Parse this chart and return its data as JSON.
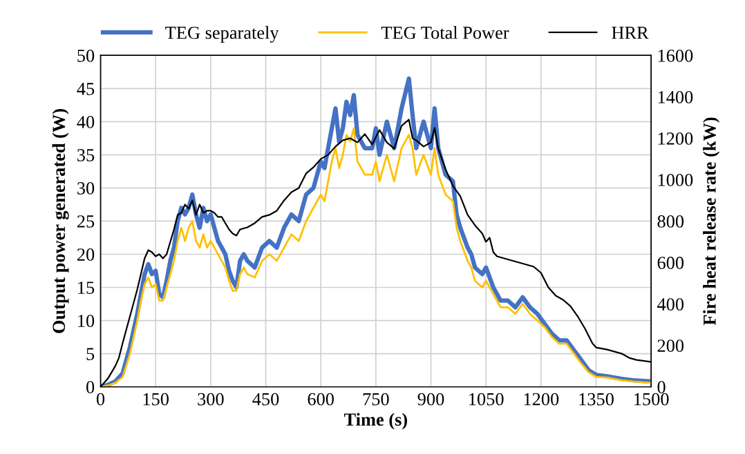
{
  "chart_data": {
    "type": "line",
    "xlabel": "Time (s)",
    "ylabel": "Output power generated (W)",
    "y2label": "Fire heat release rate (kW)",
    "xlim": [
      0,
      1500
    ],
    "xticks": [
      0,
      150,
      300,
      450,
      600,
      750,
      900,
      1050,
      1200,
      1350,
      1500
    ],
    "ylim": [
      0,
      50
    ],
    "yticks": [
      0,
      5,
      10,
      15,
      20,
      25,
      30,
      35,
      40,
      45,
      50
    ],
    "y2lim": [
      0,
      1600
    ],
    "y2ticks": [
      0,
      200,
      400,
      600,
      800,
      1000,
      1200,
      1400,
      1600
    ],
    "grid": true,
    "legend": "top",
    "marker": "none",
    "line_style": "solid",
    "series": [
      {
        "name": "TEG separately",
        "color": "#4472c4",
        "x": [
          0,
          20,
          40,
          60,
          80,
          100,
          110,
          120,
          130,
          140,
          150,
          160,
          170,
          180,
          190,
          200,
          210,
          220,
          230,
          240,
          250,
          260,
          270,
          280,
          290,
          300,
          310,
          320,
          330,
          340,
          350,
          360,
          370,
          380,
          390,
          400,
          420,
          440,
          460,
          480,
          500,
          520,
          540,
          560,
          580,
          600,
          610,
          620,
          630,
          640,
          650,
          660,
          670,
          680,
          690,
          700,
          720,
          740,
          750,
          760,
          780,
          790,
          800,
          820,
          840,
          850,
          860,
          880,
          900,
          910,
          920,
          940,
          960,
          970,
          980,
          1000,
          1010,
          1020,
          1040,
          1050,
          1070,
          1090,
          1110,
          1130,
          1150,
          1170,
          1190,
          1210,
          1230,
          1250,
          1270,
          1290,
          1310,
          1330,
          1350,
          1380,
          1420,
          1450,
          1500
        ],
        "values": [
          0,
          0.3,
          0.8,
          2,
          6,
          11,
          14,
          17,
          18.5,
          17,
          17.5,
          14,
          13.5,
          16,
          19,
          21,
          25,
          27,
          26,
          27,
          29,
          26,
          24,
          27,
          25,
          26,
          24,
          22,
          21,
          20,
          17.5,
          16,
          15,
          19,
          20,
          19,
          18,
          21,
          22,
          21,
          24,
          26,
          25,
          29,
          30,
          34,
          33,
          36,
          39,
          42,
          37,
          39,
          43,
          41,
          44,
          38,
          36,
          36,
          39,
          35,
          40,
          38,
          36,
          42,
          46.5,
          41,
          36,
          40,
          36,
          42,
          36,
          32,
          31,
          26,
          24,
          21,
          20,
          18,
          17,
          18,
          15,
          13,
          13,
          12,
          13.5,
          12,
          11,
          9.5,
          8,
          7,
          7,
          5.5,
          4,
          2.5,
          1.8,
          1.6,
          1.2,
          1,
          0.8
        ]
      },
      {
        "name": "TEG Total Power",
        "color": "#ffc000",
        "x": [
          0,
          20,
          40,
          60,
          80,
          100,
          110,
          120,
          130,
          140,
          150,
          160,
          170,
          180,
          190,
          200,
          210,
          220,
          230,
          240,
          250,
          260,
          270,
          280,
          290,
          300,
          310,
          320,
          330,
          340,
          350,
          360,
          370,
          380,
          390,
          400,
          420,
          440,
          460,
          480,
          500,
          520,
          540,
          560,
          580,
          600,
          610,
          620,
          630,
          640,
          650,
          660,
          670,
          680,
          690,
          700,
          720,
          740,
          750,
          760,
          780,
          790,
          800,
          820,
          840,
          850,
          860,
          880,
          900,
          910,
          920,
          940,
          960,
          970,
          980,
          1000,
          1010,
          1020,
          1040,
          1050,
          1070,
          1090,
          1110,
          1130,
          1150,
          1170,
          1190,
          1210,
          1230,
          1250,
          1270,
          1290,
          1310,
          1330,
          1350,
          1380,
          1420,
          1450,
          1500
        ],
        "values": [
          0,
          0.2,
          0.6,
          1.5,
          5,
          10,
          13,
          15.5,
          16.5,
          15,
          15.5,
          13,
          13,
          15,
          17,
          19,
          22,
          24,
          22,
          24,
          25,
          22,
          21,
          23,
          21,
          22,
          21,
          20,
          19,
          18,
          16,
          14.5,
          14.5,
          17,
          18,
          17,
          16.5,
          19,
          20,
          19,
          21,
          23,
          22,
          25,
          27,
          29,
          28,
          31,
          34,
          36,
          33,
          35,
          38,
          37,
          39,
          34,
          32,
          32,
          34,
          31,
          35,
          33,
          31,
          36,
          38,
          36,
          32,
          35,
          32,
          36,
          32,
          29,
          28,
          24,
          22,
          19,
          18,
          16,
          15,
          16,
          14,
          12,
          12,
          11,
          12.5,
          11,
          10,
          9,
          7.5,
          6.5,
          6.5,
          5,
          3.5,
          2.2,
          1.5,
          1.4,
          1,
          0.8,
          0.6
        ]
      },
      {
        "name": "HRR",
        "color": "#000000",
        "axis": "y2",
        "x": [
          0,
          20,
          40,
          50,
          60,
          80,
          100,
          120,
          130,
          140,
          150,
          160,
          170,
          180,
          190,
          200,
          210,
          220,
          230,
          240,
          250,
          260,
          270,
          280,
          290,
          300,
          310,
          320,
          330,
          340,
          350,
          360,
          370,
          380,
          400,
          420,
          440,
          460,
          480,
          500,
          520,
          540,
          560,
          580,
          600,
          620,
          640,
          660,
          680,
          700,
          720,
          740,
          760,
          780,
          800,
          820,
          840,
          850,
          860,
          880,
          900,
          910,
          920,
          940,
          960,
          980,
          1000,
          1020,
          1040,
          1050,
          1060,
          1070,
          1080,
          1100,
          1120,
          1140,
          1160,
          1180,
          1200,
          1220,
          1240,
          1260,
          1280,
          1300,
          1320,
          1340,
          1350,
          1380,
          1420,
          1440,
          1460,
          1500
        ],
        "values": [
          0,
          40,
          100,
          140,
          210,
          340,
          470,
          620,
          660,
          650,
          630,
          640,
          620,
          640,
          700,
          760,
          830,
          840,
          880,
          860,
          900,
          830,
          880,
          840,
          850,
          850,
          840,
          820,
          820,
          790,
          760,
          740,
          730,
          760,
          770,
          790,
          820,
          830,
          850,
          900,
          940,
          960,
          1030,
          1060,
          1100,
          1120,
          1160,
          1190,
          1200,
          1180,
          1220,
          1170,
          1240,
          1180,
          1150,
          1260,
          1290,
          1200,
          1190,
          1160,
          1180,
          1250,
          1150,
          1050,
          970,
          920,
          830,
          780,
          740,
          700,
          720,
          650,
          630,
          620,
          610,
          600,
          590,
          580,
          550,
          480,
          440,
          420,
          390,
          340,
          280,
          210,
          190,
          180,
          160,
          140,
          130,
          120
        ]
      }
    ]
  }
}
